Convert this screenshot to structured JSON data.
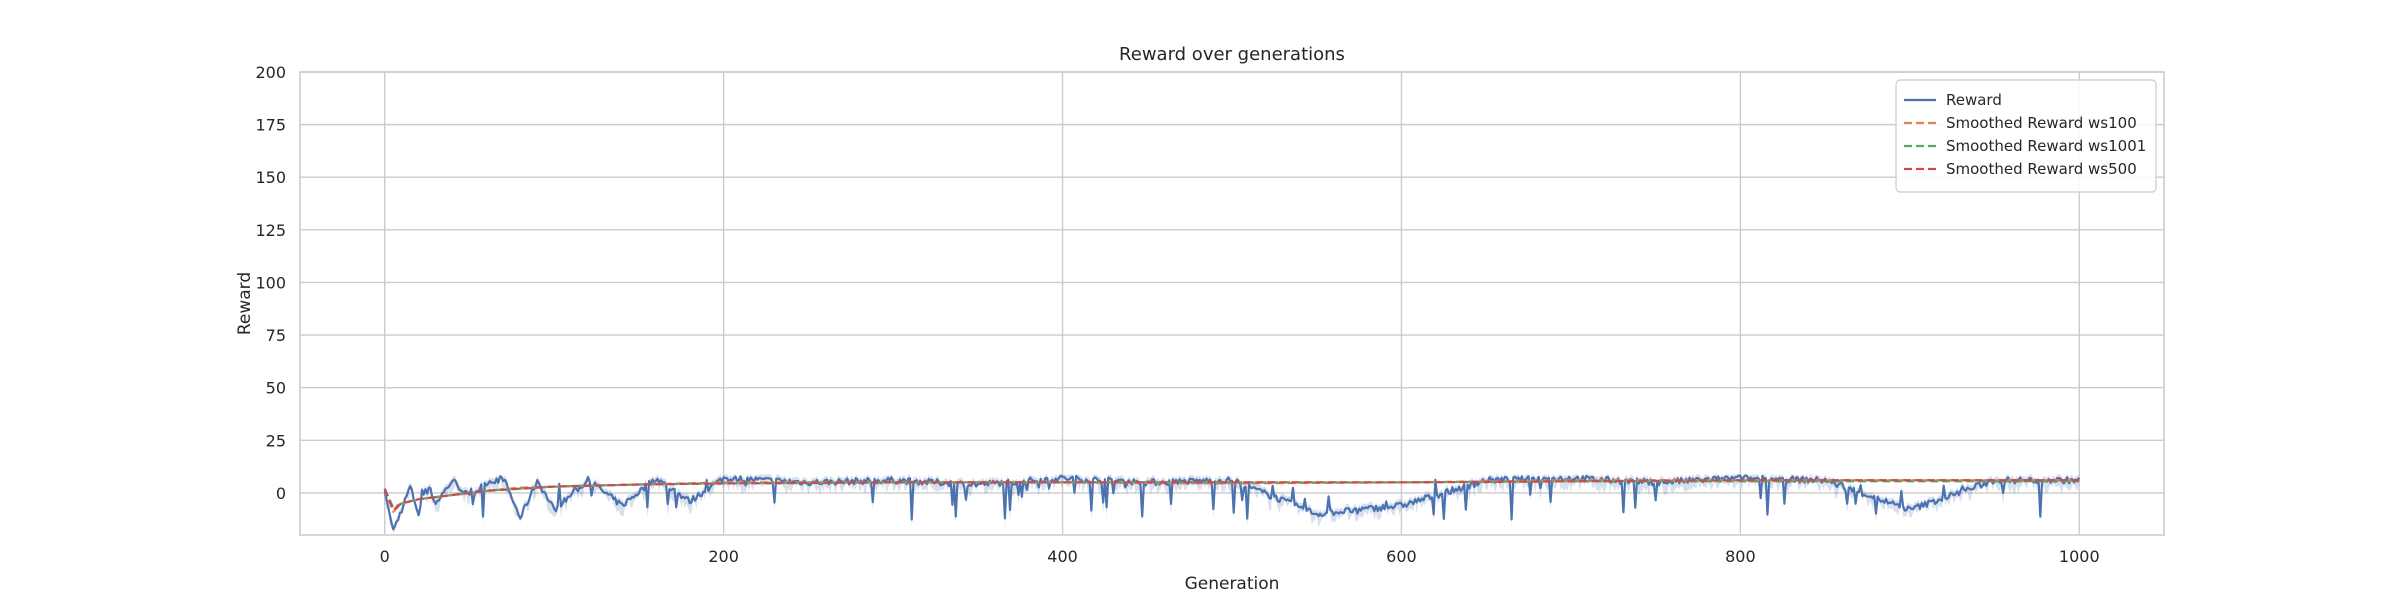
{
  "chart_data": {
    "type": "line",
    "title": "Reward over generations",
    "xlabel": "Generation",
    "ylabel": "Reward",
    "xlim": [
      -50,
      1050
    ],
    "ylim": [
      -20,
      200
    ],
    "x_ticks": [
      0,
      200,
      400,
      600,
      800,
      1000
    ],
    "y_ticks": [
      0,
      25,
      50,
      75,
      100,
      125,
      150,
      175,
      200
    ],
    "grid": true,
    "legend_position": "top-right",
    "n_points": 1001,
    "series": [
      {
        "name": "Reward",
        "style": "solid",
        "color": "#4c72b0",
        "band_color": "#4c72b0",
        "x": [
          0,
          5,
          10,
          15,
          20,
          25,
          30,
          40,
          50,
          60,
          70,
          80,
          90,
          100,
          120,
          140,
          160,
          180,
          200,
          250,
          300,
          350,
          400,
          450,
          500,
          550,
          600,
          650,
          700,
          750,
          800,
          850,
          900,
          950,
          1000
        ],
        "values": [
          1,
          -18,
          -8,
          3,
          -10,
          5,
          -5,
          6,
          -2,
          5,
          7,
          -12,
          6,
          -8,
          6,
          -6,
          7,
          -4,
          7,
          5,
          6,
          4,
          7,
          5,
          6,
          -10,
          -6,
          6,
          7,
          5,
          7,
          6,
          -8,
          6,
          6
        ]
      },
      {
        "name": "Smoothed Reward ws100",
        "style": "dashed",
        "color": "#dd8452",
        "x": [
          0,
          5,
          10,
          20,
          30,
          40,
          60,
          80,
          100,
          150,
          200,
          300,
          400,
          500,
          600,
          700,
          800,
          900,
          1000
        ],
        "values": [
          2,
          -9,
          -5,
          -3,
          -2,
          -1,
          1,
          2.5,
          3,
          4,
          5,
          5,
          5,
          4.5,
          5,
          6,
          6,
          6,
          6
        ]
      },
      {
        "name": "Smoothed Reward ws1001",
        "style": "dashed",
        "color": "#55a868",
        "x": [
          0,
          5,
          10,
          20,
          40,
          60,
          80,
          100,
          150,
          200,
          300,
          400,
          500,
          600,
          700,
          800,
          900,
          1000
        ],
        "values": [
          2,
          -7,
          -5,
          -3,
          -1,
          1,
          2,
          3,
          4,
          4.5,
          5,
          5,
          5,
          5,
          5.5,
          5.5,
          5.5,
          5.5
        ]
      },
      {
        "name": "Smoothed Reward ws500",
        "style": "dashed",
        "color": "#c44e52",
        "x": [
          0,
          5,
          10,
          20,
          40,
          60,
          80,
          100,
          150,
          200,
          300,
          400,
          500,
          600,
          700,
          800,
          900,
          1000
        ],
        "values": [
          2,
          -8,
          -5,
          -3,
          -1,
          1,
          2,
          3,
          4,
          4.5,
          5,
          5,
          5,
          5,
          5.5,
          6,
          6,
          6
        ]
      }
    ]
  }
}
